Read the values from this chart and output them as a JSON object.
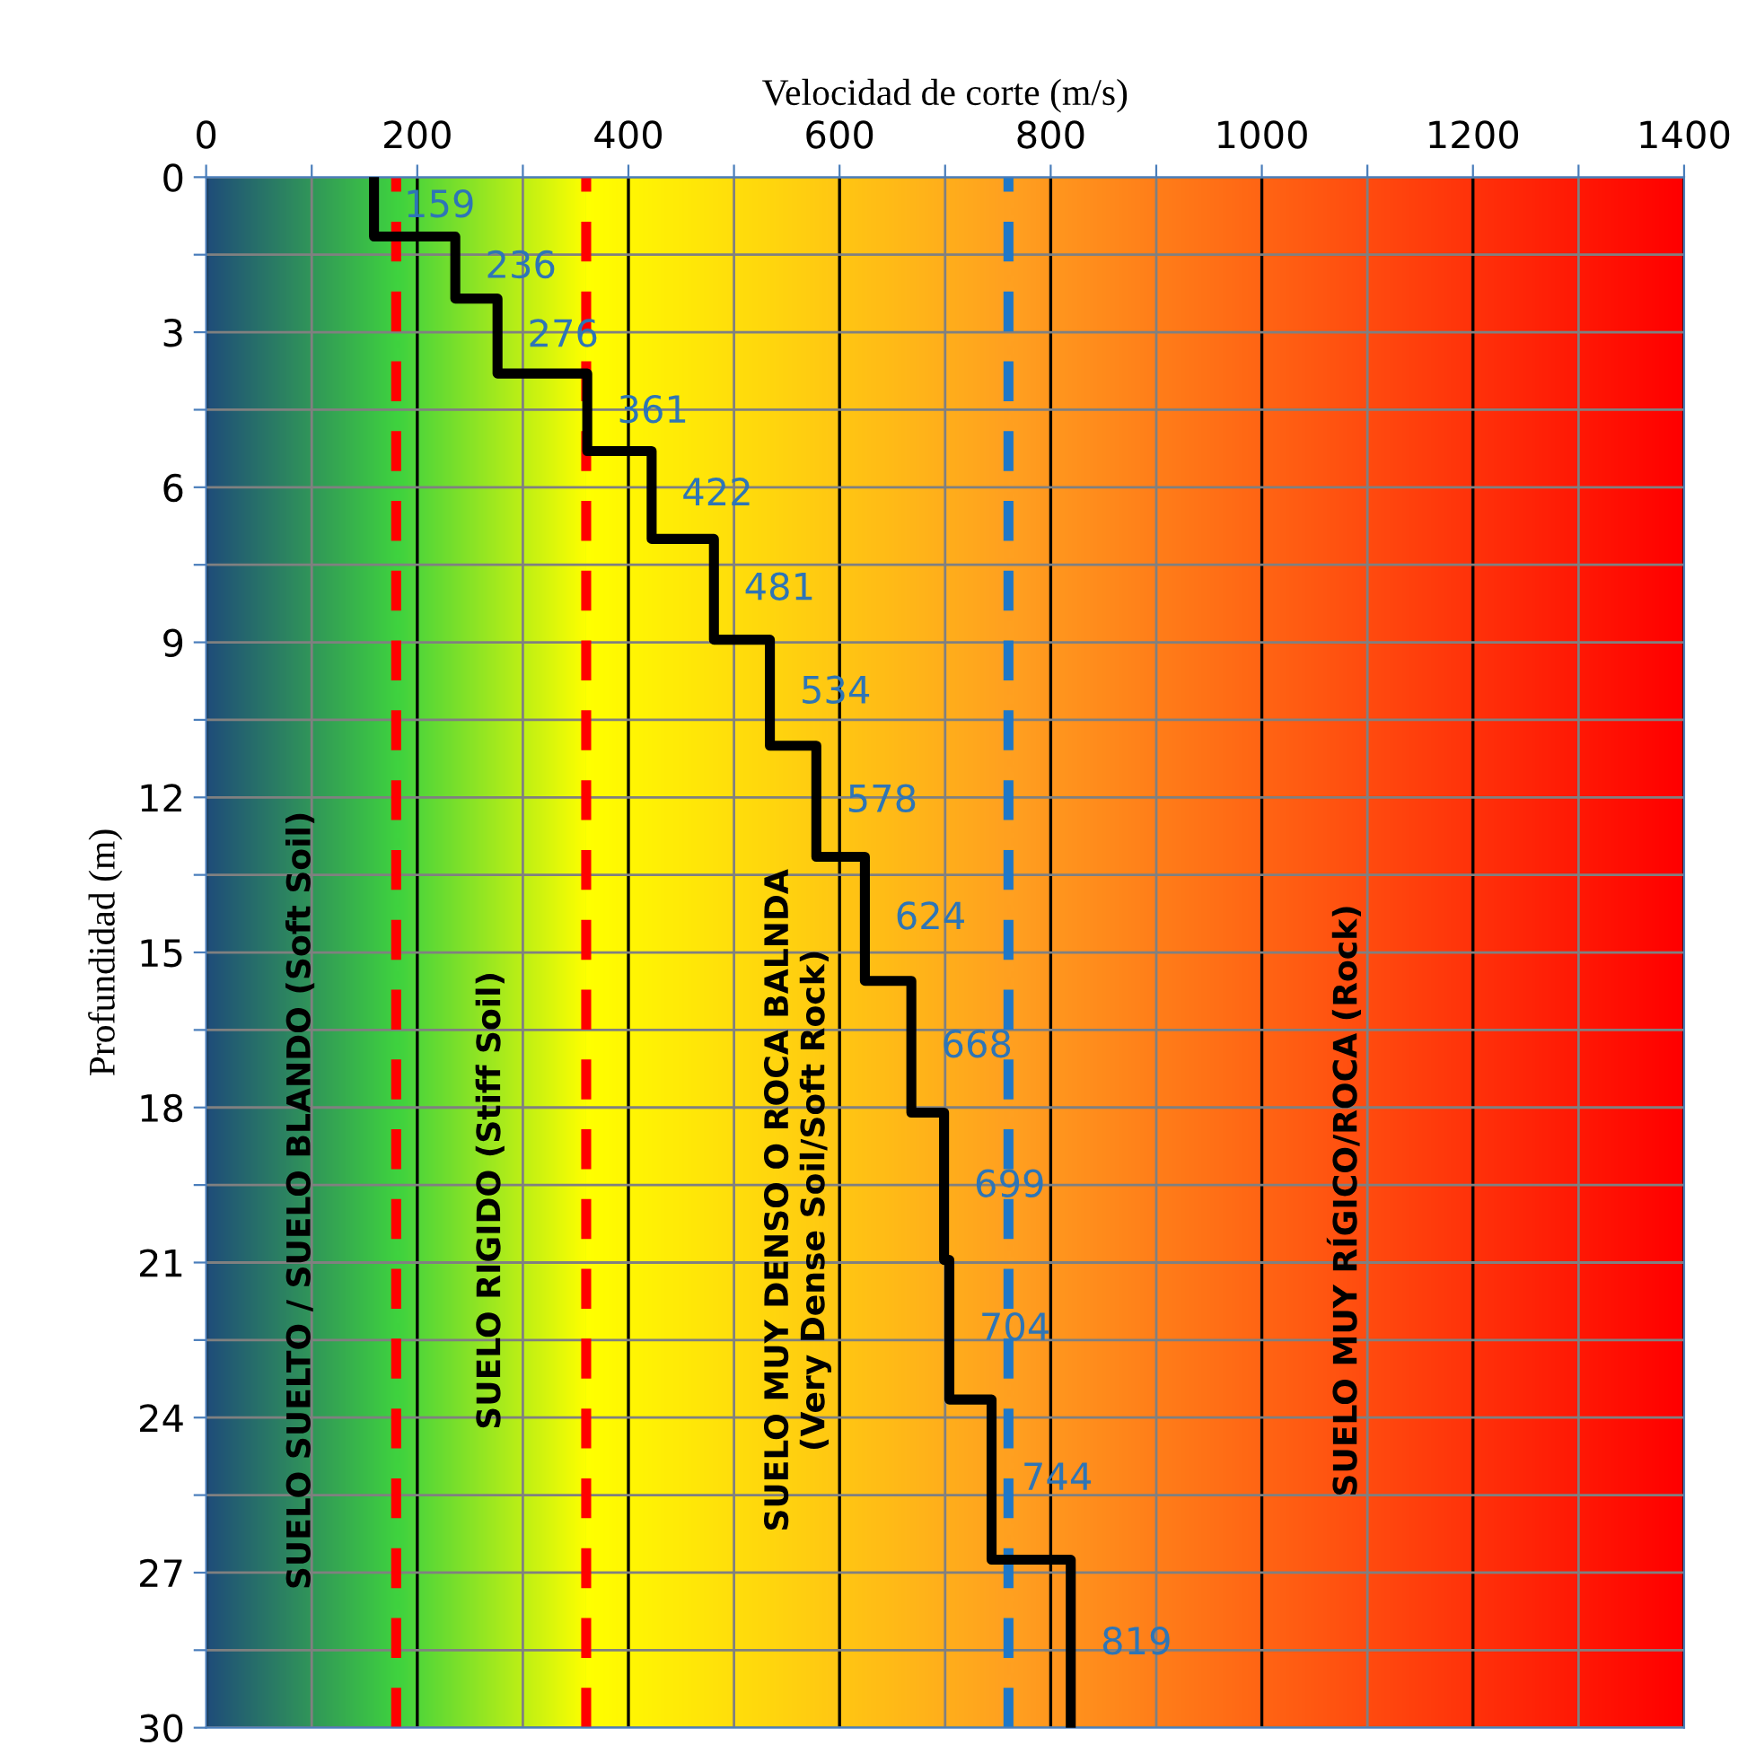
{
  "chart_data": {
    "type": "line",
    "xlabel": "Velocidad de corte (m/s)",
    "ylabel": "Profundidad (m)",
    "xlim": [
      0,
      1400
    ],
    "xticks": [
      0,
      {
        "value": 100,
        "label": null
      },
      200,
      {
        "value": 300,
        "label": null
      },
      400,
      {
        "value": 500,
        "label": null
      },
      600,
      {
        "value": 700,
        "label": null
      },
      800,
      {
        "value": 900,
        "label": null
      },
      1000,
      {
        "value": 1100,
        "label": null
      },
      1200,
      {
        "value": 1300,
        "label": null
      },
      1400
    ],
    "ylim": [
      30,
      0
    ],
    "yticks": [
      0,
      {
        "value": 1.5,
        "label": null
      },
      3,
      {
        "value": 4.5,
        "label": null
      },
      6,
      {
        "value": 7.5,
        "label": null
      },
      9,
      {
        "value": 10.5,
        "label": null
      },
      12,
      {
        "value": 13.5,
        "label": null
      },
      15,
      {
        "value": 16.5,
        "label": null
      },
      18,
      {
        "value": 19.5,
        "label": null
      },
      21,
      {
        "value": 22.5,
        "label": null
      },
      24,
      {
        "value": 25.5,
        "label": null
      },
      27,
      {
        "value": 28.5,
        "label": null
      },
      30
    ],
    "grid": true,
    "marker": "none",
    "line_style": "solid",
    "series": [
      {
        "color": "#000000",
        "x": [
          159,
          159,
          236,
          236,
          276,
          276,
          361,
          361,
          422,
          422,
          481,
          481,
          534,
          534,
          578,
          578,
          624,
          624,
          668,
          668,
          699,
          699,
          704,
          704,
          744,
          744,
          819,
          819
        ],
        "values": [
          0,
          1.15,
          1.15,
          2.35,
          2.35,
          3.8,
          3.8,
          5.3,
          5.3,
          7.0,
          7.0,
          8.95,
          8.95,
          11.0,
          11.0,
          13.15,
          13.15,
          15.55,
          15.55,
          18.1,
          18.1,
          20.95,
          20.95,
          23.65,
          23.65,
          26.75,
          26.75,
          30
        ]
      }
    ],
    "annotations": [
      {
        "text": "159",
        "x": 159,
        "y": 0.575
      },
      {
        "text": "236",
        "x": 236,
        "y": 1.75
      },
      {
        "text": "276",
        "x": 276,
        "y": 3.08
      },
      {
        "text": "361",
        "x": 361,
        "y": 4.55
      },
      {
        "text": "422",
        "x": 422,
        "y": 6.15
      },
      {
        "text": "481",
        "x": 481,
        "y": 7.98
      },
      {
        "text": "534",
        "x": 534,
        "y": 9.98
      },
      {
        "text": "578",
        "x": 578,
        "y": 12.08
      },
      {
        "text": "624",
        "x": 624,
        "y": 14.35
      },
      {
        "text": "668",
        "x": 668,
        "y": 16.83
      },
      {
        "text": "699",
        "x": 699,
        "y": 19.53
      },
      {
        "text": "704",
        "x": 704,
        "y": 22.3
      },
      {
        "text": "744",
        "x": 744,
        "y": 25.2
      },
      {
        "text": "819",
        "x": 819,
        "y": 28.38
      }
    ],
    "ref_lines": [
      {
        "axis": "x",
        "value": 180,
        "color": "#ff0000",
        "line_style": "dashed"
      },
      {
        "axis": "x",
        "value": 360,
        "color": "#ff0000",
        "line_style": "dashed"
      },
      {
        "axis": "x",
        "value": 760,
        "color": "#1f78c8",
        "line_style": "dashed"
      }
    ],
    "bands": [
      {
        "axis": "x",
        "from": 0,
        "to": 180,
        "label": "SUELO SUELTO / SUELO BLANDO (Soft Soil)",
        "color": "#1f4e79"
      },
      {
        "axis": "x",
        "from": 180,
        "to": 360,
        "label": "SUELO RIGIDO (Stiff Soil)",
        "color": "#3fd23f"
      },
      {
        "axis": "x",
        "from": 360,
        "to": 760,
        "label": "SUELO MUY DENSO O ROCA BALNDA\n(Very Dense Soil/Soft Rock)",
        "color": "#ffff00"
      },
      {
        "axis": "x",
        "from": 760,
        "to": 1400,
        "label": "SUELO MUY RÍGICO/ROCA (Rock)",
        "color": "#ffa020"
      }
    ]
  }
}
